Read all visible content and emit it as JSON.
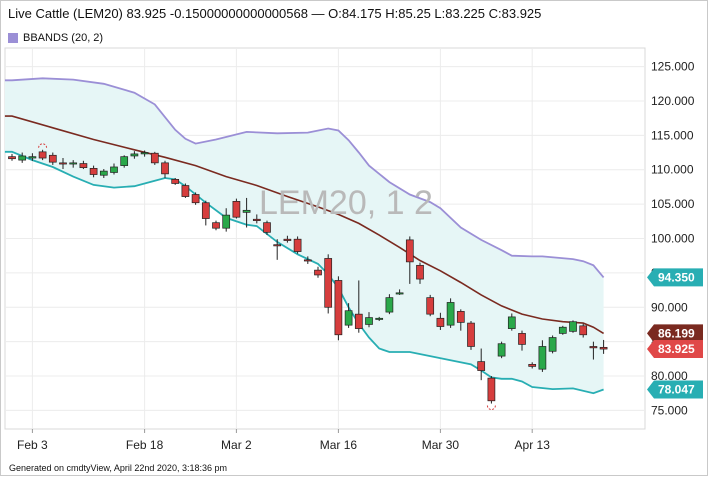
{
  "header": {
    "title": "Live Cattle (LEM20) 83.925 -0.15000000000000568 — O:84.175 H:85.25 L:83.225 C:83.925"
  },
  "legend": {
    "label": "BBANDS (20, 2)"
  },
  "watermark": "LEM20, 1 2",
  "footer": "Generated on cmdtyView, April 22nd 2020, 3:18:36 pm",
  "colors": {
    "up": "#2aa84a",
    "down": "#d63d3d",
    "band_upper": "#9b8fd6",
    "band_lower": "#28aeb3",
    "band_fill": "#e6f6f6",
    "middle": "#7a2a20",
    "tag_upper": "#28aeb3",
    "tag_middle": "#7a2a20",
    "tag_close": "#e04848",
    "tag_lower": "#28aeb3"
  },
  "chart_data": {
    "type": "candlestick",
    "y_ticks": [
      "125.000",
      "120.000",
      "115.000",
      "110.000",
      "105.000",
      "100.000",
      "95.000",
      "90.000",
      "85.000",
      "80.000",
      "75.000"
    ],
    "y_tick_values": [
      125,
      120,
      115,
      110,
      105,
      100,
      95,
      90,
      85,
      80,
      75
    ],
    "ylim": [
      72.3,
      127.7
    ],
    "x_ticks": [
      "Feb 3",
      "Feb 18",
      "Mar 2",
      "Mar 16",
      "Mar 30",
      "Apr 13"
    ],
    "x_tick_index": [
      2,
      13,
      22,
      32,
      42,
      51
    ],
    "value_tags": {
      "upper": "94.350",
      "middle": "86.199",
      "close": "83.925",
      "lower": "78.047"
    },
    "candles": [
      {
        "o": 111.9,
        "h": 112.3,
        "l": 111.3,
        "c": 111.6
      },
      {
        "o": 111.4,
        "h": 112.5,
        "l": 111.0,
        "c": 112.0
      },
      {
        "o": 111.7,
        "h": 112.4,
        "l": 111.3,
        "c": 111.9
      },
      {
        "o": 112.6,
        "h": 112.9,
        "l": 111.4,
        "c": 111.7
      },
      {
        "o": 112.1,
        "h": 112.5,
        "l": 110.7,
        "c": 111.1
      },
      {
        "o": 111.0,
        "h": 111.7,
        "l": 110.1,
        "c": 110.9
      },
      {
        "o": 110.9,
        "h": 111.4,
        "l": 110.3,
        "c": 111.0
      },
      {
        "o": 110.9,
        "h": 111.3,
        "l": 110.1,
        "c": 110.3
      },
      {
        "o": 110.2,
        "h": 110.6,
        "l": 108.9,
        "c": 109.3
      },
      {
        "o": 109.2,
        "h": 110.1,
        "l": 108.8,
        "c": 109.8
      },
      {
        "o": 109.6,
        "h": 110.9,
        "l": 109.3,
        "c": 110.4
      },
      {
        "o": 110.6,
        "h": 112.1,
        "l": 110.3,
        "c": 111.9
      },
      {
        "o": 112.0,
        "h": 112.7,
        "l": 111.6,
        "c": 112.3
      },
      {
        "o": 112.3,
        "h": 112.8,
        "l": 111.9,
        "c": 112.5
      },
      {
        "o": 112.4,
        "h": 112.6,
        "l": 110.7,
        "c": 111.0
      },
      {
        "o": 111.0,
        "h": 111.3,
        "l": 108.8,
        "c": 109.4
      },
      {
        "o": 108.6,
        "h": 108.8,
        "l": 107.8,
        "c": 108.0
      },
      {
        "o": 107.7,
        "h": 108.0,
        "l": 105.9,
        "c": 106.1
      },
      {
        "o": 106.4,
        "h": 106.7,
        "l": 104.9,
        "c": 105.2
      },
      {
        "o": 105.2,
        "h": 105.5,
        "l": 101.9,
        "c": 102.9
      },
      {
        "o": 102.3,
        "h": 102.6,
        "l": 101.2,
        "c": 101.5
      },
      {
        "o": 101.5,
        "h": 104.4,
        "l": 101.0,
        "c": 103.4
      },
      {
        "o": 105.4,
        "h": 105.8,
        "l": 102.9,
        "c": 103.1
      },
      {
        "o": 103.8,
        "h": 105.9,
        "l": 101.6,
        "c": 104.1
      },
      {
        "o": 102.8,
        "h": 103.5,
        "l": 102.2,
        "c": 102.6
      },
      {
        "o": 102.3,
        "h": 102.6,
        "l": 100.5,
        "c": 100.9
      },
      {
        "o": 99.1,
        "h": 99.9,
        "l": 96.9,
        "c": 99.0
      },
      {
        "o": 99.9,
        "h": 100.4,
        "l": 99.4,
        "c": 99.7
      },
      {
        "o": 99.9,
        "h": 100.3,
        "l": 97.8,
        "c": 98.1
      },
      {
        "o": 96.9,
        "h": 97.4,
        "l": 96.3,
        "c": 96.8
      },
      {
        "o": 95.4,
        "h": 95.9,
        "l": 94.3,
        "c": 94.7
      },
      {
        "o": 97.1,
        "h": 97.7,
        "l": 89.1,
        "c": 90.0
      },
      {
        "o": 93.9,
        "h": 94.5,
        "l": 85.2,
        "c": 86.0
      },
      {
        "o": 87.4,
        "h": 90.6,
        "l": 87.0,
        "c": 89.5
      },
      {
        "o": 89.0,
        "h": 93.9,
        "l": 86.3,
        "c": 86.9
      },
      {
        "o": 87.5,
        "h": 89.3,
        "l": 87.1,
        "c": 88.5
      },
      {
        "o": 88.3,
        "h": 88.6,
        "l": 88.0,
        "c": 88.4
      },
      {
        "o": 89.3,
        "h": 91.9,
        "l": 89.0,
        "c": 91.4
      },
      {
        "o": 92.0,
        "h": 92.6,
        "l": 91.8,
        "c": 92.1
      },
      {
        "o": 99.8,
        "h": 100.3,
        "l": 93.4,
        "c": 96.6
      },
      {
        "o": 96.1,
        "h": 96.5,
        "l": 93.4,
        "c": 94.1
      },
      {
        "o": 91.4,
        "h": 91.8,
        "l": 88.7,
        "c": 89.0
      },
      {
        "o": 88.4,
        "h": 89.2,
        "l": 86.7,
        "c": 87.2
      },
      {
        "o": 87.4,
        "h": 91.3,
        "l": 87.0,
        "c": 90.7
      },
      {
        "o": 89.4,
        "h": 89.7,
        "l": 86.6,
        "c": 87.8
      },
      {
        "o": 87.7,
        "h": 88.0,
        "l": 83.8,
        "c": 84.3
      },
      {
        "o": 82.1,
        "h": 84.0,
        "l": 79.4,
        "c": 80.8
      },
      {
        "o": 79.7,
        "h": 80.0,
        "l": 76.0,
        "c": 76.4
      },
      {
        "o": 82.9,
        "h": 85.0,
        "l": 82.6,
        "c": 84.7
      },
      {
        "o": 86.9,
        "h": 89.1,
        "l": 86.6,
        "c": 88.6
      },
      {
        "o": 86.2,
        "h": 86.6,
        "l": 83.7,
        "c": 84.6
      },
      {
        "o": 81.7,
        "h": 82.0,
        "l": 81.1,
        "c": 81.4
      },
      {
        "o": 81.0,
        "h": 85.2,
        "l": 80.6,
        "c": 84.3
      },
      {
        "o": 83.6,
        "h": 85.9,
        "l": 83.3,
        "c": 85.6
      },
      {
        "o": 86.2,
        "h": 87.3,
        "l": 86.0,
        "c": 87.1
      },
      {
        "o": 86.5,
        "h": 88.1,
        "l": 86.3,
        "c": 87.9
      },
      {
        "o": 87.3,
        "h": 87.6,
        "l": 85.6,
        "c": 86.0
      },
      {
        "o": 84.3,
        "h": 85.0,
        "l": 82.4,
        "c": 84.1
      },
      {
        "o": 84.175,
        "h": 85.25,
        "l": 83.225,
        "c": 83.925
      }
    ],
    "upper": [
      [
        0,
        123.0
      ],
      [
        3,
        123.3
      ],
      [
        6,
        123.1
      ],
      [
        9,
        122.5
      ],
      [
        12,
        121.2
      ],
      [
        14,
        119.5
      ],
      [
        16,
        115.8
      ],
      [
        17,
        114.5
      ],
      [
        18,
        113.8
      ],
      [
        20,
        114.4
      ],
      [
        23,
        115.5
      ],
      [
        26,
        115.3
      ],
      [
        29,
        115.4
      ],
      [
        31,
        116.0
      ],
      [
        32,
        115.7
      ],
      [
        33,
        114.3
      ],
      [
        34,
        112.5
      ],
      [
        35,
        110.6
      ],
      [
        37,
        108.2
      ],
      [
        39,
        106.4
      ],
      [
        41,
        105.3
      ],
      [
        42,
        104.4
      ],
      [
        44,
        101.6
      ],
      [
        46,
        99.8
      ],
      [
        48,
        98.3
      ],
      [
        49,
        97.5
      ],
      [
        51,
        97.4
      ],
      [
        52,
        97.4
      ],
      [
        55,
        97.0
      ],
      [
        56,
        96.7
      ],
      [
        57,
        96.1
      ],
      [
        58,
        94.35
      ]
    ],
    "middle": [
      [
        0,
        117.8
      ],
      [
        4,
        116.1
      ],
      [
        8,
        114.4
      ],
      [
        12,
        112.9
      ],
      [
        15,
        111.8
      ],
      [
        18,
        110.6
      ],
      [
        21,
        109.0
      ],
      [
        24,
        107.7
      ],
      [
        27,
        106.1
      ],
      [
        30,
        104.6
      ],
      [
        32,
        103.5
      ],
      [
        34,
        102.2
      ],
      [
        36,
        100.5
      ],
      [
        38,
        98.7
      ],
      [
        40,
        96.8
      ],
      [
        42,
        95.3
      ],
      [
        44,
        93.6
      ],
      [
        46,
        91.8
      ],
      [
        48,
        90.2
      ],
      [
        50,
        89.0
      ],
      [
        52,
        88.3
      ],
      [
        54,
        87.9
      ],
      [
        56,
        87.7
      ],
      [
        57,
        87.1
      ],
      [
        58,
        86.199
      ]
    ],
    "lower": [
      [
        0,
        112.6
      ],
      [
        2,
        111.4
      ],
      [
        4,
        110.4
      ],
      [
        6,
        109.0
      ],
      [
        8,
        107.8
      ],
      [
        10,
        107.4
      ],
      [
        12,
        107.6
      ],
      [
        14,
        108.4
      ],
      [
        15,
        108.8
      ],
      [
        16,
        108.6
      ],
      [
        17,
        107.6
      ],
      [
        19,
        105.2
      ],
      [
        21,
        103.0
      ],
      [
        23,
        102.0
      ],
      [
        24,
        101.8
      ],
      [
        26,
        99.5
      ],
      [
        28,
        97.7
      ],
      [
        30,
        96.3
      ],
      [
        31,
        94.8
      ],
      [
        32,
        92.8
      ],
      [
        33,
        90.0
      ],
      [
        34,
        87.6
      ],
      [
        35,
        85.6
      ],
      [
        36,
        84.0
      ],
      [
        37,
        83.5
      ],
      [
        39,
        83.5
      ],
      [
        41,
        82.9
      ],
      [
        43,
        82.3
      ],
      [
        45,
        81.7
      ],
      [
        46,
        80.8
      ],
      [
        47,
        79.8
      ],
      [
        48,
        79.6
      ],
      [
        49,
        79.6
      ],
      [
        50,
        79.2
      ],
      [
        51,
        78.4
      ],
      [
        53,
        78.1
      ],
      [
        55,
        78.2
      ],
      [
        57,
        77.5
      ],
      [
        58,
        78.047
      ]
    ]
  }
}
